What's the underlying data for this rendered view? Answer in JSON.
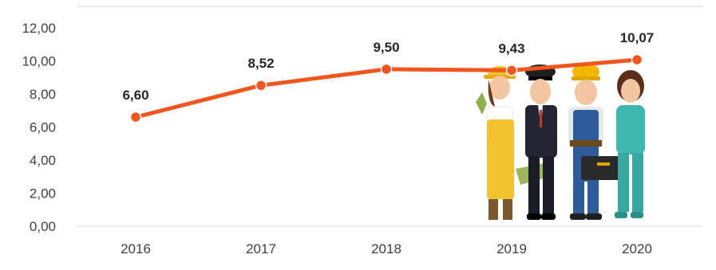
{
  "chart_data": {
    "type": "line",
    "title": "",
    "xlabel": "",
    "ylabel": "",
    "categories": [
      "2016",
      "2017",
      "2018",
      "2019",
      "2020"
    ],
    "series": [
      {
        "values": [
          6.6,
          8.52,
          9.5,
          9.43,
          10.07
        ],
        "labels": [
          "6,60",
          "8,52",
          "9,50",
          "9,43",
          "10,07"
        ],
        "color": "#F0561D"
      }
    ],
    "ylim": [
      0,
      12
    ],
    "yticks": [
      0,
      2,
      4,
      6,
      8,
      10,
      12
    ],
    "ytick_labels": [
      "0,00",
      "2,00",
      "4,00",
      "6,00",
      "8,00",
      "10,00",
      "12,00"
    ],
    "grid": false,
    "legend": "none",
    "illustration": "group of workers (gardener, pilot, construction worker, nurse)"
  }
}
